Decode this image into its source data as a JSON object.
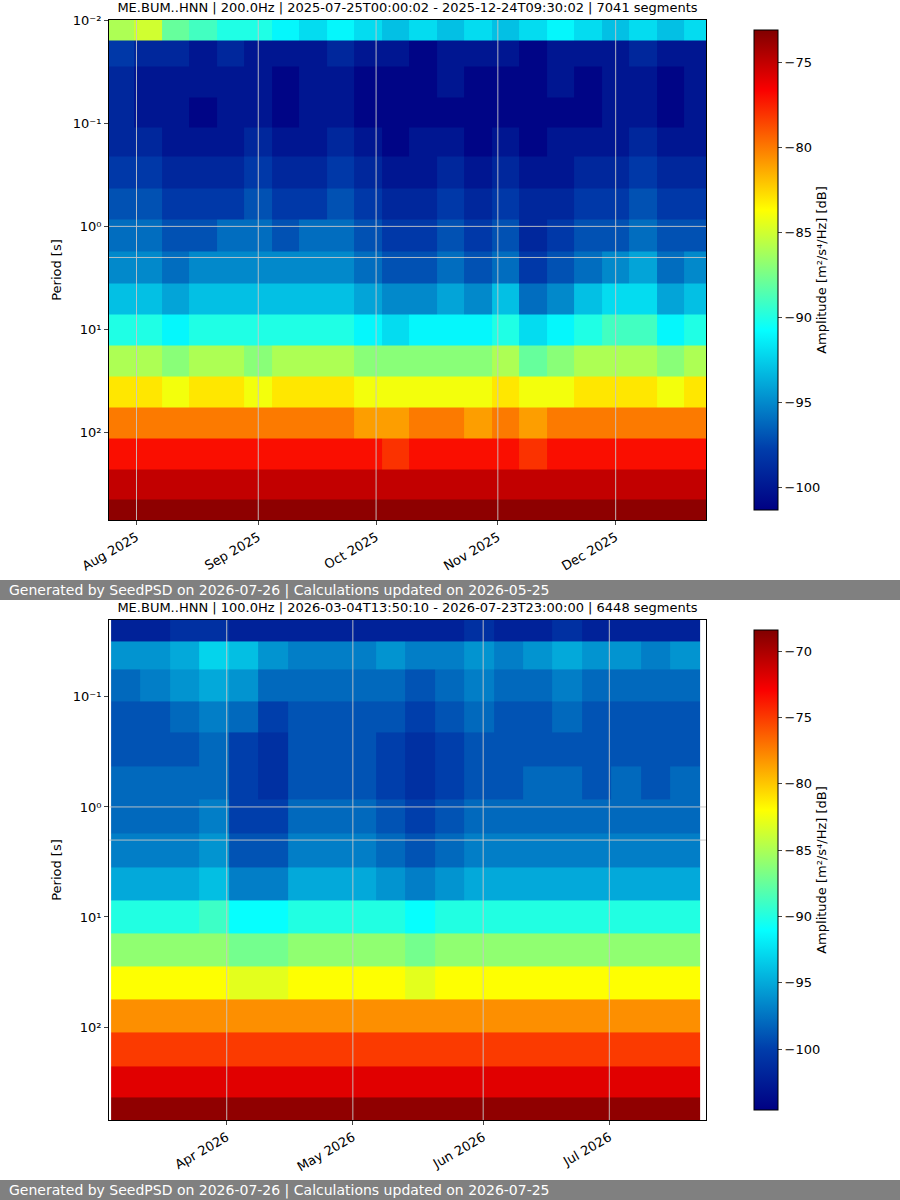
{
  "chart_data": [
    {
      "type": "heatmap",
      "title": "ME.BUM..HNN | 200.0Hz | 2025-07-25T00:00:02 - 2025-12-24T09:30:02 | 7041 segments",
      "footer": "Generated by SeedPSD on 2026-07-26 | Calculations updated on 2026-05-25",
      "y_label": "Period [s]",
      "log": "y",
      "grid": true,
      "color": "Jet",
      "xlim": [
        "2025-07-25",
        "2025-12-24"
      ],
      "xticks": [
        {
          "value": "2025-08-01",
          "label": "Aug 2025"
        },
        {
          "value": "2025-09-01",
          "label": "Sep 2025"
        },
        {
          "value": "2025-10-01",
          "label": "Oct 2025"
        },
        {
          "value": "2025-11-01",
          "label": "Nov 2025"
        },
        {
          "value": "2025-12-01",
          "label": "Dec 2025"
        }
      ],
      "ylim": [
        0.01,
        700
      ],
      "yticks": [
        {
          "value": 0.01,
          "label": "10⁻²"
        },
        {
          "value": 0.1,
          "label": "10⁻¹"
        },
        {
          "value": 1,
          "label": "10⁰"
        },
        {
          "value": 10,
          "label": "10¹"
        },
        {
          "value": 100,
          "label": "10²"
        }
      ],
      "colorbar": {
        "title": "Amplitude [m²/s⁴/Hz] [dB]",
        "range": [
          -101.3,
          -73.1
        ],
        "ticks": [
          -75,
          -80,
          -85,
          -90,
          -95,
          -100
        ]
      },
      "x": [
        "2025-07-28",
        "2025-08-04",
        "2025-08-11",
        "2025-08-18",
        "2025-08-25",
        "2025-09-01",
        "2025-09-08",
        "2025-09-15",
        "2025-09-22",
        "2025-09-29",
        "2025-10-06",
        "2025-10-13",
        "2025-10-20",
        "2025-10-27",
        "2025-11-03",
        "2025-11-10",
        "2025-11-17",
        "2025-11-24",
        "2025-12-01",
        "2025-12-08",
        "2025-12-15",
        "2025-12-22"
      ],
      "y": [
        0.0125,
        0.02,
        0.04,
        0.08,
        0.15,
        0.3,
        0.6,
        1.2,
        2.5,
        5,
        10,
        20,
        40,
        80,
        160,
        320,
        600
      ],
      "z": [
        [
          -86,
          -85,
          -88,
          -89,
          -90,
          -90,
          -91,
          -92,
          -91,
          -92,
          -93,
          -92,
          -93,
          -92,
          -93,
          -92,
          -91,
          -92,
          -93,
          -92,
          -93,
          -92
        ],
        [
          -98,
          -99,
          -99,
          -100,
          -99,
          -100,
          -100,
          -100,
          -99,
          -100,
          -100,
          -101,
          -100,
          -100,
          -100,
          -101,
          -100,
          -100,
          -100,
          -99,
          -100,
          -100
        ],
        [
          -99,
          -100,
          -100,
          -100,
          -100,
          -100,
          -101,
          -100,
          -100,
          -101,
          -101,
          -101,
          -100,
          -101,
          -101,
          -101,
          -100,
          -101,
          -100,
          -100,
          -101,
          -100
        ],
        [
          -99,
          -100,
          -100,
          -101,
          -100,
          -100,
          -101,
          -100,
          -100,
          -101,
          -101,
          -101,
          -101,
          -101,
          -101,
          -101,
          -101,
          -101,
          -100,
          -100,
          -101,
          -100
        ],
        [
          -99,
          -99,
          -100,
          -100,
          -100,
          -99,
          -100,
          -100,
          -99,
          -100,
          -101,
          -100,
          -100,
          -101,
          -100,
          -101,
          -100,
          -100,
          -100,
          -99,
          -100,
          -100
        ],
        [
          -98,
          -98,
          -99,
          -99,
          -99,
          -98,
          -99,
          -99,
          -98,
          -99,
          -100,
          -100,
          -99,
          -100,
          -99,
          -100,
          -100,
          -99,
          -99,
          -98,
          -99,
          -99
        ],
        [
          -97,
          -97,
          -98,
          -98,
          -98,
          -97,
          -98,
          -98,
          -97,
          -98,
          -99,
          -99,
          -98,
          -99,
          -98,
          -99,
          -99,
          -98,
          -98,
          -97,
          -98,
          -98
        ],
        [
          -96,
          -96,
          -97,
          -97,
          -96,
          -96,
          -97,
          -96,
          -96,
          -97,
          -98,
          -98,
          -97,
          -98,
          -97,
          -99,
          -98,
          -97,
          -97,
          -96,
          -97,
          -97
        ],
        [
          -95,
          -95,
          -96,
          -95,
          -95,
          -95,
          -95,
          -95,
          -95,
          -96,
          -97,
          -97,
          -96,
          -97,
          -96,
          -98,
          -97,
          -96,
          -95,
          -94,
          -96,
          -95
        ],
        [
          -93,
          -93,
          -94,
          -93,
          -93,
          -93,
          -93,
          -93,
          -93,
          -94,
          -95,
          -95,
          -94,
          -95,
          -93,
          -96,
          -95,
          -93,
          -92,
          -92,
          -94,
          -93
        ],
        [
          -90,
          -90,
          -91,
          -90,
          -90,
          -90,
          -90,
          -90,
          -90,
          -91,
          -92,
          -91,
          -91,
          -91,
          -90,
          -92,
          -91,
          -90,
          -89,
          -89,
          -91,
          -90
        ],
        [
          -86,
          -86,
          -87,
          -86,
          -86,
          -87,
          -86,
          -86,
          -86,
          -87,
          -87,
          -87,
          -87,
          -87,
          -86,
          -88,
          -87,
          -86,
          -86,
          -86,
          -87,
          -86
        ],
        [
          -83,
          -83,
          -84,
          -83,
          -83,
          -84,
          -83,
          -83,
          -83,
          -84,
          -84,
          -84,
          -84,
          -84,
          -83,
          -84,
          -84,
          -83,
          -83,
          -83,
          -84,
          -83
        ],
        [
          -80,
          -80,
          -80,
          -80,
          -80,
          -80,
          -80,
          -80,
          -80,
          -81,
          -81,
          -80,
          -80,
          -81,
          -80,
          -81,
          -80,
          -80,
          -80,
          -80,
          -80,
          -80
        ],
        [
          -77,
          -77,
          -77,
          -77,
          -77,
          -77,
          -77,
          -77,
          -77,
          -77,
          -78,
          -77,
          -77,
          -77,
          -77,
          -78,
          -77,
          -77,
          -77,
          -77,
          -77,
          -77
        ],
        [
          -75,
          -75,
          -75,
          -75,
          -75,
          -75,
          -75,
          -75,
          -75,
          -75,
          -75,
          -75,
          -75,
          -75,
          -75,
          -75,
          -75,
          -75,
          -75,
          -75,
          -75,
          -75
        ],
        [
          -73.5,
          -73.5,
          -73.5,
          -73.5,
          -73.5,
          -73.5,
          -73.5,
          -73.5,
          -73.5,
          -73.5,
          -73.5,
          -73.5,
          -73.5,
          -73.5,
          -73.5,
          -73.5,
          -73.5,
          -73.5,
          -73.5,
          -73.5,
          -73.5,
          -73.5
        ]
      ]
    },
    {
      "type": "heatmap",
      "title": "ME.BUM..HNN | 100.0Hz | 2026-03-04T13:50:10 - 2026-07-23T23:00:00 | 6448 segments",
      "footer": "Generated by SeedPSD on 2026-07-26 | Calculations updated on 2026-07-25",
      "y_label": "Period [s]",
      "log": "y",
      "grid": true,
      "color": "Jet",
      "xlim": [
        "2026-03-04",
        "2026-07-24"
      ],
      "xticks": [
        {
          "value": "2026-04-01",
          "label": "Apr 2026"
        },
        {
          "value": "2026-05-01",
          "label": "May 2026"
        },
        {
          "value": "2026-06-01",
          "label": "Jun 2026"
        },
        {
          "value": "2026-07-01",
          "label": "Jul 2026"
        }
      ],
      "ylim": [
        0.02,
        700
      ],
      "yticks": [
        {
          "value": 0.1,
          "label": "10⁻¹"
        },
        {
          "value": 1,
          "label": "10⁰"
        },
        {
          "value": 10,
          "label": "10¹"
        },
        {
          "value": 100,
          "label": "10²"
        }
      ],
      "colorbar": {
        "title": "Amplitude [m²/s⁴/Hz] [dB]",
        "range": [
          -104.6,
          -68.4
        ],
        "ticks": [
          -70,
          -75,
          -80,
          -85,
          -90,
          -95,
          -100
        ]
      },
      "x": [
        "2026-03-08",
        "2026-03-15",
        "2026-03-22",
        "2026-03-29",
        "2026-04-05",
        "2026-04-12",
        "2026-04-19",
        "2026-04-26",
        "2026-05-03",
        "2026-05-10",
        "2026-05-17",
        "2026-05-24",
        "2026-05-31",
        "2026-06-07",
        "2026-06-14",
        "2026-06-21",
        "2026-06-28",
        "2026-07-05",
        "2026-07-12",
        "2026-07-19"
      ],
      "y": [
        0.025,
        0.04,
        0.08,
        0.15,
        0.3,
        0.6,
        1.2,
        2.5,
        5,
        10,
        20,
        40,
        80,
        160,
        320,
        600
      ],
      "z": [
        [
          -102,
          -102,
          -101,
          -101,
          -102,
          -102,
          -102,
          -102,
          -102,
          -102,
          -102,
          -102,
          -101,
          -102,
          -102,
          -101,
          -102,
          -102,
          -102,
          -102
        ],
        [
          -96,
          -96,
          -95,
          -93,
          -94,
          -96,
          -97,
          -97,
          -97,
          -96,
          -97,
          -97,
          -96,
          -97,
          -96,
          -95,
          -96,
          -96,
          -97,
          -96
        ],
        [
          -98,
          -97,
          -96,
          -95,
          -96,
          -98,
          -98,
          -98,
          -98,
          -98,
          -99,
          -98,
          -97,
          -98,
          -98,
          -97,
          -98,
          -98,
          -98,
          -98
        ],
        [
          -99,
          -99,
          -98,
          -97,
          -98,
          -100,
          -99,
          -99,
          -99,
          -99,
          -100,
          -99,
          -98,
          -99,
          -99,
          -98,
          -99,
          -99,
          -99,
          -99
        ],
        [
          -99,
          -99,
          -99,
          -98,
          -100,
          -101,
          -99,
          -99,
          -99,
          -100,
          -101,
          -100,
          -99,
          -99,
          -99,
          -99,
          -99,
          -99,
          -99,
          -99
        ],
        [
          -98,
          -98,
          -98,
          -98,
          -100,
          -101,
          -99,
          -99,
          -99,
          -100,
          -101,
          -100,
          -99,
          -99,
          -98,
          -98,
          -99,
          -98,
          -99,
          -98
        ],
        [
          -98,
          -98,
          -98,
          -97,
          -100,
          -100,
          -98,
          -98,
          -98,
          -99,
          -100,
          -99,
          -98,
          -98,
          -98,
          -98,
          -98,
          -98,
          -98,
          -98
        ],
        [
          -97,
          -97,
          -97,
          -96,
          -99,
          -99,
          -97,
          -97,
          -97,
          -98,
          -99,
          -98,
          -97,
          -97,
          -97,
          -97,
          -97,
          -97,
          -97,
          -97
        ],
        [
          -95,
          -95,
          -95,
          -94,
          -97,
          -97,
          -95,
          -95,
          -95,
          -96,
          -97,
          -96,
          -95,
          -95,
          -95,
          -95,
          -95,
          -95,
          -95,
          -95
        ],
        [
          -90,
          -90,
          -90,
          -89,
          -91,
          -91,
          -90,
          -90,
          -90,
          -90,
          -91,
          -90,
          -90,
          -90,
          -90,
          -90,
          -90,
          -90,
          -90,
          -90
        ],
        [
          -86,
          -86,
          -86,
          -86,
          -87,
          -87,
          -86,
          -86,
          -86,
          -86,
          -87,
          -86,
          -86,
          -86,
          -86,
          -86,
          -86,
          -86,
          -86,
          -86
        ],
        [
          -82,
          -82,
          -82,
          -82,
          -83,
          -83,
          -82,
          -82,
          -82,
          -82,
          -83,
          -82,
          -82,
          -82,
          -82,
          -82,
          -82,
          -82,
          -82,
          -82
        ],
        [
          -78,
          -78,
          -78,
          -78,
          -78,
          -78,
          -78,
          -78,
          -78,
          -78,
          -78,
          -78,
          -78,
          -78,
          -78,
          -78,
          -78,
          -78,
          -78,
          -78
        ],
        [
          -75,
          -75,
          -75,
          -75,
          -75,
          -75,
          -75,
          -75,
          -75,
          -75,
          -75,
          -75,
          -75,
          -75,
          -75,
          -75,
          -75,
          -75,
          -75,
          -75
        ],
        [
          -72,
          -72,
          -72,
          -72,
          -72,
          -72,
          -72,
          -72,
          -72,
          -72,
          -72,
          -72,
          -72,
          -72,
          -72,
          -72,
          -72,
          -72,
          -72,
          -72
        ],
        [
          -69,
          -69,
          -69,
          -69,
          -69,
          -69,
          -69,
          -69,
          -69,
          -69,
          -69,
          -69,
          -69,
          -69,
          -69,
          -69,
          -69,
          -69,
          -69,
          -69
        ]
      ]
    }
  ]
}
